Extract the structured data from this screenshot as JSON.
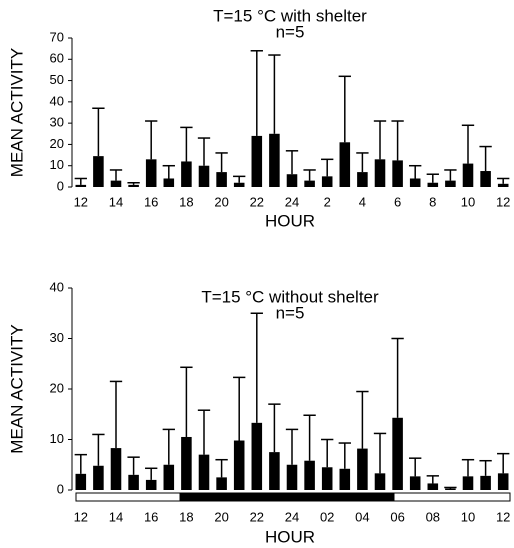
{
  "chart_data": [
    {
      "type": "bar",
      "title": "T=15 °C with shelter",
      "subtitle": "n=5",
      "x_label": "HOUR",
      "y_label": "MEAN ACTIVITY",
      "categories": [
        "12",
        null,
        "14",
        null,
        "16",
        null,
        "18",
        null,
        "20",
        null,
        "22",
        null,
        "24",
        null,
        "2",
        null,
        "4",
        null,
        "6",
        null,
        "8",
        null,
        "10",
        null,
        "12"
      ],
      "values": [
        1,
        14.5,
        3,
        1,
        13,
        4,
        12,
        10,
        7,
        2,
        24,
        25,
        6,
        3,
        5,
        21,
        7,
        13,
        12.5,
        4,
        2,
        3,
        11,
        7.5,
        1.5
      ],
      "errors": [
        3,
        22.5,
        5,
        1,
        18,
        6,
        16,
        13,
        9,
        3,
        40,
        37,
        11,
        5,
        8,
        31,
        9,
        18,
        18.5,
        6,
        4,
        5,
        18,
        11.5,
        2.5
      ],
      "color": "#000000",
      "ylim": [
        0,
        70
      ],
      "yticks": [
        0,
        10,
        20,
        30,
        40,
        50,
        60,
        70
      ]
    },
    {
      "type": "bar",
      "title": "T=15 °C without shelter",
      "subtitle": "n=5",
      "x_label": "HOUR",
      "y_label": "MEAN ACTIVITY",
      "categories": [
        "12",
        null,
        "14",
        null,
        "16",
        null,
        "18",
        null,
        "20",
        null,
        "22",
        null,
        "24",
        null,
        "02",
        null,
        "04",
        null,
        "06",
        null,
        "08",
        null,
        "10",
        null,
        "12"
      ],
      "values": [
        3.2,
        4.8,
        8.3,
        3,
        2,
        5,
        10.5,
        7,
        2.5,
        9.8,
        13.3,
        7.5,
        5,
        5.8,
        4.5,
        4.2,
        8.2,
        3.3,
        14.3,
        2.7,
        1.3,
        0.3,
        2.7,
        2.8,
        3.3
      ],
      "errors": [
        3.8,
        6.2,
        13.2,
        3.5,
        2.3,
        7,
        13.8,
        8.8,
        3.5,
        12.5,
        21.7,
        9.5,
        7,
        9,
        5.5,
        5.1,
        11.3,
        7.9,
        15.7,
        3.6,
        1.5,
        0.2,
        3.3,
        3,
        3.9
      ],
      "color": "#000000",
      "ylim": [
        0,
        40
      ],
      "yticks": [
        0,
        10,
        20,
        30,
        40
      ]
    }
  ]
}
